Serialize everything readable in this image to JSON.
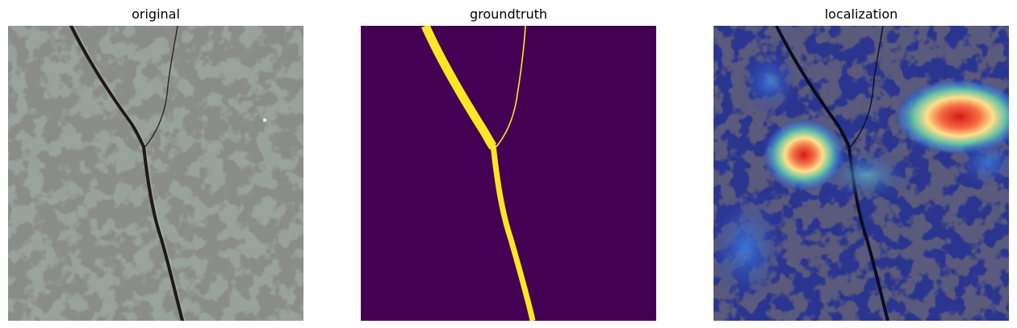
{
  "figure": {
    "panels": [
      {
        "title": "original"
      },
      {
        "title": "groundtruth"
      },
      {
        "title": "localization"
      }
    ]
  },
  "colors": {
    "stone_base": "#9aa39e",
    "stone_spot": "#3f413f",
    "crack": "#1e1a18",
    "mask_background": "#440154",
    "mask_crack": "#fde725",
    "heat_low": "#1f2a8c",
    "heat_high": "#d7191c"
  }
}
